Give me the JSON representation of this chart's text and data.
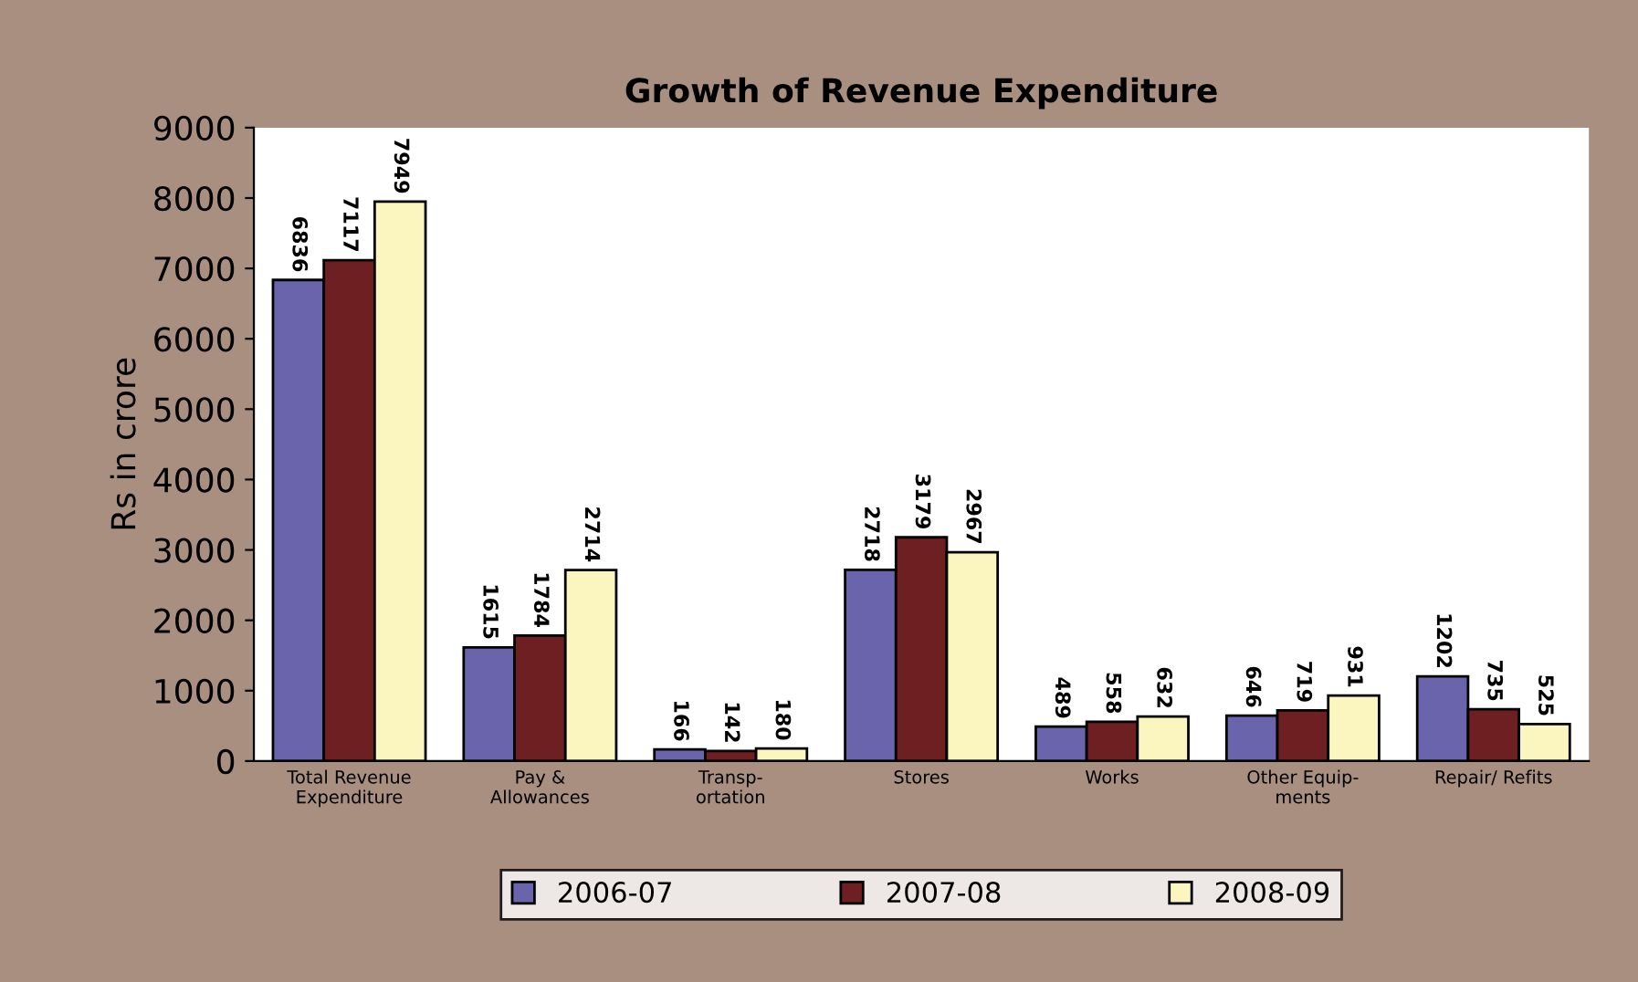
{
  "chart_data": {
    "type": "bar",
    "title": "Growth of Revenue Expenditure",
    "ylabel": "Rs in crore",
    "categories": [
      "Total Revenue\nExpenditure",
      "Pay &\nAllowances",
      "Transp-\nortation",
      "Stores",
      "Works",
      "Other Equip-\nments",
      "Repair/ Refits"
    ],
    "series": [
      {
        "name": "2006-07",
        "color": "#6a64ac",
        "values": [
          6836,
          1615,
          166,
          2718,
          489,
          646,
          1202
        ]
      },
      {
        "name": "2007-08",
        "color": "#6e1f22",
        "values": [
          7117,
          1784,
          142,
          3179,
          558,
          719,
          735
        ]
      },
      {
        "name": "2008-09",
        "color": "#fbf6c0",
        "values": [
          7949,
          2714,
          180,
          2967,
          632,
          931,
          525
        ]
      }
    ],
    "ylim": [
      0,
      9000
    ],
    "yticks": [
      0,
      1000,
      2000,
      3000,
      4000,
      5000,
      6000,
      7000,
      8000,
      9000
    ],
    "data_labels": true,
    "legend": "bottom",
    "grid": false
  }
}
